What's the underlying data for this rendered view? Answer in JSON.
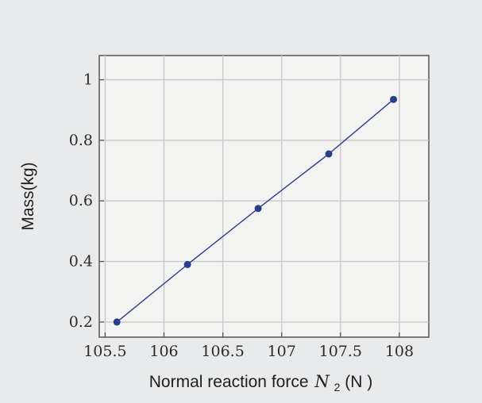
{
  "chart_data": {
    "type": "line",
    "title": "",
    "xlabel": "Normal reaction force",
    "xlabel_symbol": "N",
    "xlabel_subscript": "2",
    "xlabel_unit": "(N )",
    "ylabel": "Mass(kg)",
    "xlim": [
      105.45,
      108.25
    ],
    "ylim": [
      0.15,
      1.08
    ],
    "x_ticks": [
      105.5,
      106,
      106.5,
      107,
      107.5,
      108
    ],
    "x_tick_labels": [
      "105.5",
      "106",
      "106.5",
      "107",
      "107.5",
      "108"
    ],
    "y_ticks": [
      0.2,
      0.4,
      0.6,
      0.8,
      1
    ],
    "y_tick_labels": [
      "0.2",
      "0.4",
      "0.6",
      "0.8",
      "1"
    ],
    "grid": true,
    "legend": "none",
    "series": [
      {
        "x": [
          105.6,
          106.2,
          106.8,
          107.4,
          107.95
        ],
        "y": [
          0.2,
          0.39,
          0.575,
          0.755,
          0.935
        ],
        "color": "#2a3f8c",
        "marker": "circle"
      }
    ]
  }
}
